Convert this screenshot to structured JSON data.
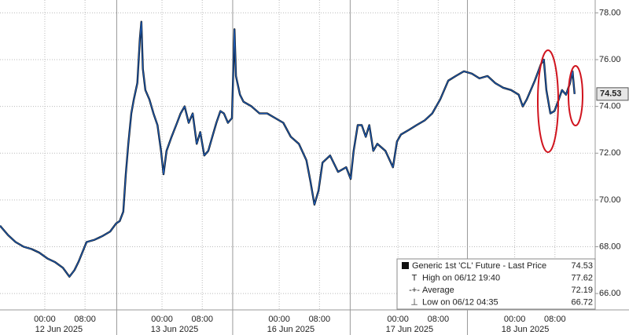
{
  "chart_data": {
    "type": "line",
    "series": [
      {
        "name": "Generic 1st 'CL' Future - Last Price",
        "color": "#1c5cb8",
        "x": [
          0,
          1.6,
          3.1,
          4.7,
          6.3,
          7.8,
          9.4,
          10.9,
          12.5,
          13.8,
          14.8,
          15.6,
          17.2,
          18.8,
          20.3,
          21.9,
          23.1,
          23.8,
          24.5,
          25,
          25.5,
          26.1,
          26.6,
          27.3,
          27.8,
          28.1,
          28.4,
          28.9,
          29.7,
          30.5,
          31.3,
          32,
          32.5,
          33.1,
          34.1,
          35.2,
          35.9,
          36.7,
          37.5,
          38.3,
          39.1,
          39.8,
          40.6,
          41.4,
          42.2,
          43,
          43.8,
          44.5,
          45.3,
          46.1,
          46.6,
          46.9,
          47.7,
          48.4,
          50,
          51.6,
          53.1,
          54.7,
          56.3,
          57.8,
          59.4,
          60.9,
          61.7,
          62.5,
          63.3,
          64.1,
          65.6,
          67.2,
          68.8,
          69.7,
          70.3,
          71.1,
          71.9,
          72.7,
          73.4,
          74.2,
          75,
          76.6,
          78.1,
          78.9,
          79.7,
          81.3,
          82.8,
          84.4,
          85.9,
          87.5,
          89.1,
          90.6,
          92.2,
          93.8,
          95.3,
          96.9,
          98.4,
          100,
          101.6,
          103.1,
          103.9,
          104.7,
          106.3,
          107.5,
          108.1,
          108.6,
          109.4,
          110.2,
          110.9,
          111.7,
          112.5,
          113.3,
          113.8,
          114.2
        ],
        "values": [
          68.9,
          68.5,
          68.2,
          68.0,
          67.9,
          67.75,
          67.5,
          67.35,
          67.1,
          66.72,
          67.0,
          67.35,
          68.2,
          68.3,
          68.45,
          68.65,
          69.0,
          69.1,
          69.5,
          71.1,
          72.4,
          73.7,
          74.3,
          75.0,
          76.9,
          77.62,
          75.6,
          74.7,
          74.3,
          73.7,
          73.2,
          72.1,
          71.1,
          72.1,
          72.7,
          73.3,
          73.7,
          74.0,
          73.3,
          73.7,
          72.4,
          72.9,
          71.9,
          72.1,
          72.7,
          73.3,
          73.8,
          73.7,
          73.3,
          73.5,
          77.3,
          75.3,
          74.5,
          74.2,
          74.0,
          73.7,
          73.7,
          73.5,
          73.3,
          72.7,
          72.4,
          71.7,
          70.8,
          69.8,
          70.4,
          71.6,
          71.9,
          71.2,
          71.4,
          70.9,
          72.1,
          73.2,
          73.2,
          72.7,
          73.2,
          72.1,
          72.4,
          72.1,
          71.4,
          72.5,
          72.8,
          73.0,
          73.2,
          73.4,
          73.7,
          74.3,
          75.1,
          75.3,
          75.5,
          75.4,
          75.2,
          75.3,
          75.0,
          74.8,
          74.7,
          74.5,
          74.0,
          74.3,
          75.1,
          75.8,
          76.0,
          74.7,
          73.7,
          73.8,
          74.2,
          74.7,
          74.5,
          75.0,
          75.5,
          74.53
        ]
      }
    ],
    "last_price": 74.53,
    "xlim": [
      0,
      118.3
    ],
    "ylim": [
      65.3,
      78.55
    ],
    "yticks": [
      {
        "value": 66,
        "label": "66.00"
      },
      {
        "value": 68,
        "label": "68.00"
      },
      {
        "value": 70,
        "label": "70.00"
      },
      {
        "value": 72,
        "label": "72.00"
      },
      {
        "value": 74,
        "label": "74.00"
      },
      {
        "value": 76,
        "label": "76.00"
      },
      {
        "value": 78,
        "label": "78.00"
      }
    ],
    "xticks": [
      {
        "value": 8.9,
        "label": "00:00"
      },
      {
        "value": 16.9,
        "label": "08:00"
      },
      {
        "value": 32.2,
        "label": "00:00"
      },
      {
        "value": 40.2,
        "label": "08:00"
      },
      {
        "value": 55.5,
        "label": "00:00"
      },
      {
        "value": 63.5,
        "label": "08:00"
      },
      {
        "value": 79.1,
        "label": "00:00"
      },
      {
        "value": 87.1,
        "label": "08:00"
      },
      {
        "value": 102.3,
        "label": "00:00"
      },
      {
        "value": 110.3,
        "label": "08:00"
      }
    ],
    "day_labels": [
      {
        "value": 11.7,
        "label": "12 Jun 2025"
      },
      {
        "value": 34.7,
        "label": "13 Jun 2025"
      },
      {
        "value": 57.8,
        "label": "16 Jun 2025"
      },
      {
        "value": 81.4,
        "label": "17 Jun 2025"
      },
      {
        "value": 104.4,
        "label": "18 Jun 2025"
      }
    ],
    "grid": true,
    "legend": {
      "rows": [
        {
          "label": "High on 06/12 19:40",
          "value": 77.62
        },
        {
          "label": "Average",
          "value": 72.19
        },
        {
          "label": "Low on 06/12 04:35",
          "value": 66.72
        }
      ]
    }
  }
}
